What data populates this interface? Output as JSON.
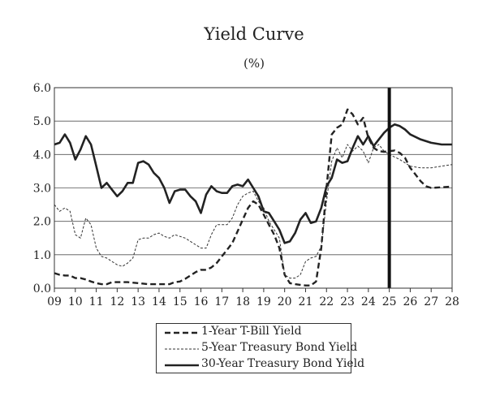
{
  "chart_data": {
    "type": "line",
    "title": "Yield Curve",
    "subtitle": "(%)",
    "xlabel": "",
    "ylabel": "",
    "x_tick_labels": [
      "09",
      "10",
      "11",
      "12",
      "13",
      "14",
      "15",
      "16",
      "17",
      "18",
      "19",
      "20",
      "21",
      "22",
      "23",
      "24",
      "25",
      "26",
      "27",
      "28"
    ],
    "y_tick_labels": [
      "0.0",
      "1.0",
      "2.0",
      "3.0",
      "4.0",
      "5.0",
      "6.0"
    ],
    "ylim": [
      0,
      6
    ],
    "xlim": [
      2009,
      2028
    ],
    "grid": "horizontal",
    "forecast_marker_x": 2025.0,
    "legend_position": "bottom-center",
    "series": [
      {
        "name": "1-Year T-Bill Yield",
        "style": "dashed-bold",
        "x": [
          2009.0,
          2009.25,
          2009.5,
          2009.75,
          2010.0,
          2010.25,
          2010.5,
          2010.75,
          2011.0,
          2011.25,
          2011.5,
          2011.75,
          2012.0,
          2012.5,
          2013.0,
          2013.5,
          2014.0,
          2014.5,
          2014.75,
          2015.0,
          2015.25,
          2015.5,
          2015.75,
          2016.0,
          2016.25,
          2016.5,
          2016.75,
          2017.0,
          2017.25,
          2017.5,
          2017.75,
          2018.0,
          2018.25,
          2018.5,
          2018.75,
          2019.0,
          2019.25,
          2019.5,
          2019.75,
          2020.0,
          2020.25,
          2020.5,
          2020.75,
          2021.0,
          2021.25,
          2021.5,
          2021.75,
          2022.0,
          2022.25,
          2022.5,
          2022.75,
          2023.0,
          2023.25,
          2023.5,
          2023.75,
          2024.0,
          2024.25,
          2024.5,
          2024.75,
          2025.0,
          2025.25,
          2025.5,
          2025.75,
          2026.0,
          2026.25,
          2026.5,
          2026.75,
          2027.0,
          2027.5,
          2028.0
        ],
        "values": [
          0.45,
          0.4,
          0.38,
          0.38,
          0.3,
          0.3,
          0.26,
          0.2,
          0.15,
          0.12,
          0.12,
          0.18,
          0.18,
          0.18,
          0.15,
          0.12,
          0.12,
          0.12,
          0.18,
          0.2,
          0.28,
          0.38,
          0.48,
          0.55,
          0.55,
          0.62,
          0.75,
          0.95,
          1.15,
          1.35,
          1.7,
          2.05,
          2.4,
          2.6,
          2.5,
          2.2,
          1.9,
          1.6,
          1.2,
          0.4,
          0.15,
          0.12,
          0.1,
          0.08,
          0.08,
          0.2,
          1.2,
          3.0,
          4.6,
          4.8,
          4.9,
          5.35,
          5.2,
          4.9,
          5.1,
          4.5,
          4.2,
          4.1,
          4.08,
          4.1,
          4.12,
          4.05,
          3.9,
          3.6,
          3.4,
          3.2,
          3.05,
          3.0,
          3.02,
          3.04
        ]
      },
      {
        "name": "5-Year Treasury Bond Yield",
        "style": "dotted-thin",
        "x": [
          2009.0,
          2009.25,
          2009.5,
          2009.75,
          2010.0,
          2010.25,
          2010.5,
          2010.75,
          2011.0,
          2011.25,
          2011.5,
          2011.75,
          2012.0,
          2012.25,
          2012.5,
          2012.75,
          2013.0,
          2013.25,
          2013.5,
          2013.75,
          2014.0,
          2014.25,
          2014.5,
          2014.75,
          2015.0,
          2015.25,
          2015.5,
          2015.75,
          2016.0,
          2016.25,
          2016.5,
          2016.75,
          2017.0,
          2017.25,
          2017.5,
          2017.75,
          2018.0,
          2018.25,
          2018.5,
          2018.75,
          2019.0,
          2019.25,
          2019.5,
          2019.75,
          2020.0,
          2020.25,
          2020.5,
          2020.75,
          2021.0,
          2021.25,
          2021.5,
          2021.75,
          2022.0,
          2022.25,
          2022.5,
          2022.75,
          2023.0,
          2023.25,
          2023.5,
          2023.75,
          2024.0,
          2024.25,
          2024.5,
          2024.75,
          2025.0,
          2025.5,
          2026.0,
          2026.5,
          2027.0,
          2027.5,
          2028.0
        ],
        "values": [
          2.5,
          2.3,
          2.4,
          2.3,
          1.6,
          1.5,
          2.1,
          1.9,
          1.2,
          0.95,
          0.9,
          0.8,
          0.7,
          0.65,
          0.75,
          0.9,
          1.45,
          1.5,
          1.5,
          1.6,
          1.65,
          1.55,
          1.5,
          1.6,
          1.55,
          1.5,
          1.4,
          1.3,
          1.2,
          1.2,
          1.6,
          1.9,
          1.9,
          1.9,
          2.1,
          2.5,
          2.75,
          2.85,
          2.9,
          2.6,
          2.4,
          2.0,
          1.75,
          1.5,
          0.4,
          0.3,
          0.3,
          0.4,
          0.8,
          0.9,
          0.95,
          1.25,
          2.6,
          3.8,
          4.2,
          3.9,
          4.3,
          4.1,
          4.25,
          4.1,
          3.75,
          4.2,
          4.3,
          4.1,
          4.0,
          3.85,
          3.65,
          3.6,
          3.6,
          3.65,
          3.7
        ]
      },
      {
        "name": "30-Year Treasury Bond Yield",
        "style": "solid-bold",
        "x": [
          2009.0,
          2009.25,
          2009.5,
          2009.75,
          2010.0,
          2010.25,
          2010.5,
          2010.75,
          2011.0,
          2011.25,
          2011.5,
          2011.75,
          2012.0,
          2012.25,
          2012.5,
          2012.75,
          2013.0,
          2013.25,
          2013.5,
          2013.75,
          2014.0,
          2014.25,
          2014.5,
          2014.75,
          2015.0,
          2015.25,
          2015.5,
          2015.75,
          2016.0,
          2016.25,
          2016.5,
          2016.75,
          2017.0,
          2017.25,
          2017.5,
          2017.75,
          2018.0,
          2018.25,
          2018.5,
          2018.75,
          2019.0,
          2019.25,
          2019.5,
          2019.75,
          2020.0,
          2020.25,
          2020.5,
          2020.75,
          2021.0,
          2021.25,
          2021.5,
          2021.75,
          2022.0,
          2022.25,
          2022.5,
          2022.75,
          2023.0,
          2023.25,
          2023.5,
          2023.75,
          2024.0,
          2024.25,
          2024.5,
          2024.75,
          2025.0,
          2025.25,
          2025.5,
          2025.75,
          2026.0,
          2026.5,
          2027.0,
          2027.5,
          2028.0
        ],
        "values": [
          4.3,
          4.35,
          4.6,
          4.35,
          3.85,
          4.15,
          4.55,
          4.3,
          3.65,
          3.0,
          3.15,
          2.95,
          2.75,
          2.9,
          3.15,
          3.15,
          3.75,
          3.8,
          3.7,
          3.45,
          3.3,
          3.0,
          2.55,
          2.9,
          2.95,
          2.95,
          2.75,
          2.6,
          2.25,
          2.8,
          3.05,
          2.9,
          2.85,
          2.85,
          3.05,
          3.1,
          3.05,
          3.25,
          3.0,
          2.75,
          2.3,
          2.25,
          2.0,
          1.75,
          1.35,
          1.4,
          1.65,
          2.05,
          2.25,
          1.95,
          2.0,
          2.4,
          3.05,
          3.3,
          3.85,
          3.75,
          3.8,
          4.2,
          4.55,
          4.3,
          4.55,
          4.25,
          4.45,
          4.65,
          4.8,
          4.9,
          4.85,
          4.75,
          4.6,
          4.45,
          4.35,
          4.3,
          4.3
        ]
      }
    ]
  }
}
